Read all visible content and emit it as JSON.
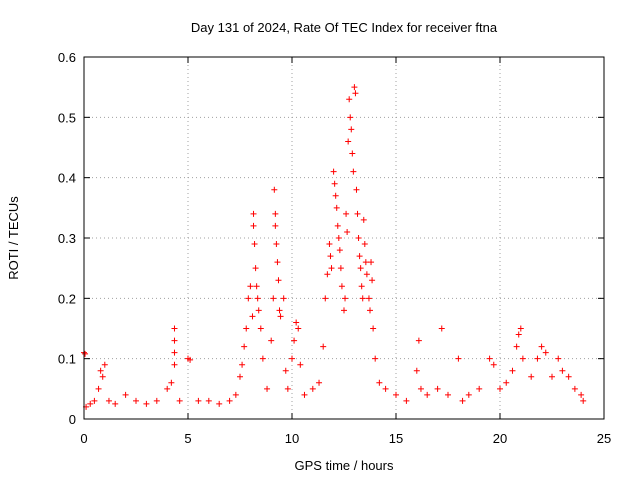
{
  "chart_data": {
    "type": "scatter",
    "title": "Day 131 of 2024, Rate Of TEC Index for receiver ftna",
    "xlabel": "GPS time / hours",
    "ylabel": "ROTI / TECUs",
    "xlim": [
      0,
      25
    ],
    "ylim": [
      0,
      0.6
    ],
    "xticks": [
      0,
      5,
      10,
      15,
      20,
      25
    ],
    "yticks": [
      0,
      0.1,
      0.2,
      0.3,
      0.4,
      0.5,
      0.6
    ],
    "grid": true,
    "marker": "plus",
    "color": "#ff0000",
    "series": [
      {
        "values": [
          [
            0.0,
            0.11
          ],
          [
            0.05,
            0.108
          ],
          [
            0.1,
            0.02
          ],
          [
            0.3,
            0.025
          ],
          [
            0.5,
            0.03
          ],
          [
            0.7,
            0.05
          ],
          [
            0.8,
            0.08
          ],
          [
            0.9,
            0.07
          ],
          [
            1.0,
            0.09
          ],
          [
            1.2,
            0.03
          ],
          [
            1.5,
            0.025
          ],
          [
            2.0,
            0.04
          ],
          [
            2.5,
            0.03
          ],
          [
            3.0,
            0.025
          ],
          [
            3.5,
            0.03
          ],
          [
            4.0,
            0.05
          ],
          [
            4.2,
            0.06
          ],
          [
            4.35,
            0.15
          ],
          [
            4.35,
            0.13
          ],
          [
            4.35,
            0.11
          ],
          [
            4.35,
            0.09
          ],
          [
            4.6,
            0.03
          ],
          [
            5.0,
            0.1
          ],
          [
            5.1,
            0.098
          ],
          [
            5.5,
            0.03
          ],
          [
            6.0,
            0.03
          ],
          [
            6.5,
            0.025
          ],
          [
            7.0,
            0.03
          ],
          [
            7.3,
            0.04
          ],
          [
            7.5,
            0.07
          ],
          [
            7.6,
            0.09
          ],
          [
            7.7,
            0.12
          ],
          [
            7.8,
            0.15
          ],
          [
            7.9,
            0.2
          ],
          [
            8.0,
            0.22
          ],
          [
            8.1,
            0.17
          ],
          [
            8.15,
            0.34
          ],
          [
            8.15,
            0.32
          ],
          [
            8.2,
            0.29
          ],
          [
            8.25,
            0.25
          ],
          [
            8.3,
            0.22
          ],
          [
            8.35,
            0.2
          ],
          [
            8.4,
            0.18
          ],
          [
            8.5,
            0.15
          ],
          [
            8.6,
            0.1
          ],
          [
            8.8,
            0.05
          ],
          [
            9.0,
            0.13
          ],
          [
            9.1,
            0.2
          ],
          [
            9.15,
            0.38
          ],
          [
            9.2,
            0.34
          ],
          [
            9.2,
            0.32
          ],
          [
            9.25,
            0.29
          ],
          [
            9.3,
            0.26
          ],
          [
            9.35,
            0.23
          ],
          [
            9.4,
            0.18
          ],
          [
            9.45,
            0.17
          ],
          [
            9.6,
            0.2
          ],
          [
            9.7,
            0.08
          ],
          [
            9.8,
            0.05
          ],
          [
            10.0,
            0.1
          ],
          [
            10.1,
            0.13
          ],
          [
            10.2,
            0.16
          ],
          [
            10.3,
            0.15
          ],
          [
            10.4,
            0.09
          ],
          [
            10.6,
            0.04
          ],
          [
            11.0,
            0.05
          ],
          [
            11.3,
            0.06
          ],
          [
            11.5,
            0.12
          ],
          [
            11.6,
            0.2
          ],
          [
            11.7,
            0.24
          ],
          [
            11.8,
            0.29
          ],
          [
            11.85,
            0.27
          ],
          [
            11.9,
            0.25
          ],
          [
            12.0,
            0.41
          ],
          [
            12.05,
            0.39
          ],
          [
            12.1,
            0.37
          ],
          [
            12.15,
            0.35
          ],
          [
            12.2,
            0.32
          ],
          [
            12.25,
            0.3
          ],
          [
            12.3,
            0.28
          ],
          [
            12.35,
            0.25
          ],
          [
            12.4,
            0.22
          ],
          [
            12.5,
            0.18
          ],
          [
            12.55,
            0.2
          ],
          [
            12.6,
            0.34
          ],
          [
            12.65,
            0.31
          ],
          [
            12.7,
            0.46
          ],
          [
            12.75,
            0.53
          ],
          [
            12.8,
            0.5
          ],
          [
            12.85,
            0.48
          ],
          [
            12.9,
            0.44
          ],
          [
            12.95,
            0.41
          ],
          [
            13.0,
            0.55
          ],
          [
            13.05,
            0.54
          ],
          [
            13.1,
            0.38
          ],
          [
            13.15,
            0.34
          ],
          [
            13.2,
            0.3
          ],
          [
            13.25,
            0.27
          ],
          [
            13.3,
            0.25
          ],
          [
            13.35,
            0.22
          ],
          [
            13.4,
            0.2
          ],
          [
            13.45,
            0.33
          ],
          [
            13.5,
            0.29
          ],
          [
            13.55,
            0.26
          ],
          [
            13.6,
            0.24
          ],
          [
            13.7,
            0.2
          ],
          [
            13.75,
            0.18
          ],
          [
            13.8,
            0.26
          ],
          [
            13.85,
            0.23
          ],
          [
            13.9,
            0.15
          ],
          [
            14.0,
            0.1
          ],
          [
            14.2,
            0.06
          ],
          [
            14.5,
            0.05
          ],
          [
            15.0,
            0.04
          ],
          [
            15.5,
            0.03
          ],
          [
            16.0,
            0.08
          ],
          [
            16.1,
            0.13
          ],
          [
            16.2,
            0.05
          ],
          [
            16.5,
            0.04
          ],
          [
            17.0,
            0.05
          ],
          [
            17.2,
            0.15
          ],
          [
            17.5,
            0.04
          ],
          [
            18.0,
            0.1
          ],
          [
            18.2,
            0.03
          ],
          [
            18.5,
            0.04
          ],
          [
            19.0,
            0.05
          ],
          [
            19.5,
            0.1
          ],
          [
            19.7,
            0.09
          ],
          [
            20.0,
            0.05
          ],
          [
            20.3,
            0.06
          ],
          [
            20.6,
            0.08
          ],
          [
            20.8,
            0.12
          ],
          [
            20.9,
            0.14
          ],
          [
            21.0,
            0.15
          ],
          [
            21.1,
            0.1
          ],
          [
            21.5,
            0.07
          ],
          [
            21.8,
            0.1
          ],
          [
            22.0,
            0.12
          ],
          [
            22.2,
            0.11
          ],
          [
            22.5,
            0.07
          ],
          [
            22.8,
            0.1
          ],
          [
            23.0,
            0.08
          ],
          [
            23.3,
            0.07
          ],
          [
            23.6,
            0.05
          ],
          [
            23.9,
            0.04
          ],
          [
            24.0,
            0.03
          ]
        ]
      }
    ]
  }
}
